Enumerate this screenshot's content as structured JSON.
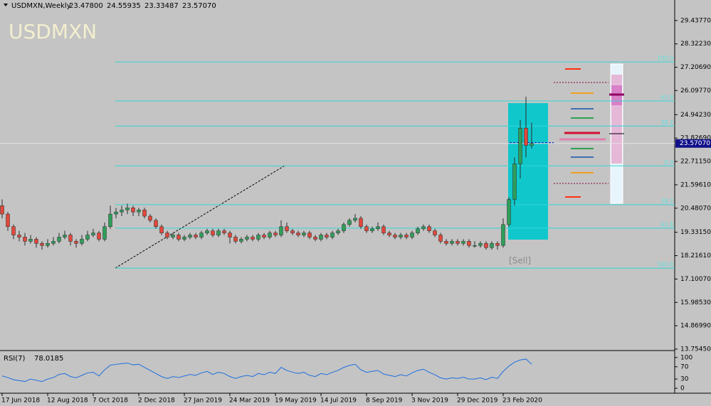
{
  "chart_data": {
    "type": "candlestick",
    "symbol": "USDMXN,Weekly",
    "quote_labels": [
      "23.47800",
      "24.55935",
      "23.33487",
      "23.57070"
    ],
    "watermark": "USDMXN",
    "annotation": "[Sell]",
    "current_price_label": "23.57070",
    "colors": {
      "up": "#2f9e5a",
      "down": "#e2473b",
      "wick": "#2a2a2a",
      "fib": "#33d6d6",
      "rsi": "#1e6fe0"
    },
    "categories": [
      "17 Jun 2018",
      null,
      null,
      null,
      null,
      null,
      null,
      null,
      "12 Aug 2018",
      null,
      null,
      null,
      null,
      null,
      null,
      null,
      "7 Oct 2018",
      null,
      null,
      null,
      null,
      null,
      null,
      null,
      "2 Dec 2018",
      null,
      null,
      null,
      null,
      null,
      null,
      null,
      "27 Jan 2019",
      null,
      null,
      null,
      null,
      null,
      null,
      null,
      "24 Mar 2019",
      null,
      null,
      null,
      null,
      null,
      null,
      null,
      "19 May 2019",
      null,
      null,
      null,
      null,
      null,
      null,
      null,
      "14 Jul 2019",
      null,
      null,
      null,
      null,
      null,
      null,
      null,
      "8 Sep 2019",
      null,
      null,
      null,
      null,
      null,
      null,
      null,
      "3 Nov 2019",
      null,
      null,
      null,
      null,
      null,
      null,
      null,
      "29 Dec 2019",
      null,
      null,
      null,
      null,
      null,
      null,
      null,
      "23 Feb 2020",
      null,
      null,
      null,
      null,
      null
    ],
    "ohlc": [
      [
        20.6,
        20.9,
        20.0,
        20.2
      ],
      [
        20.2,
        20.3,
        19.4,
        19.6
      ],
      [
        19.6,
        19.7,
        19.0,
        19.2
      ],
      [
        19.2,
        19.4,
        18.9,
        19.1
      ],
      [
        19.1,
        19.3,
        18.7,
        18.9
      ],
      [
        18.9,
        19.2,
        18.8,
        19.0
      ],
      [
        19.0,
        19.1,
        18.6,
        18.8
      ],
      [
        18.8,
        18.9,
        18.5,
        18.7
      ],
      [
        18.7,
        19.0,
        18.6,
        18.8
      ],
      [
        18.8,
        19.1,
        18.7,
        18.9
      ],
      [
        18.9,
        19.3,
        18.8,
        19.1
      ],
      [
        19.1,
        19.4,
        19.0,
        19.2
      ],
      [
        19.2,
        19.3,
        18.7,
        18.9
      ],
      [
        18.9,
        19.0,
        18.6,
        18.8
      ],
      [
        18.8,
        19.2,
        18.7,
        19.0
      ],
      [
        19.0,
        19.4,
        18.9,
        19.2
      ],
      [
        19.2,
        19.5,
        19.1,
        19.3
      ],
      [
        19.3,
        19.4,
        18.9,
        19.0
      ],
      [
        19.0,
        19.8,
        18.9,
        19.6
      ],
      [
        19.6,
        20.6,
        19.5,
        20.2
      ],
      [
        20.2,
        20.5,
        20.0,
        20.3
      ],
      [
        20.3,
        20.6,
        20.1,
        20.4
      ],
      [
        20.4,
        20.7,
        20.2,
        20.5
      ],
      [
        20.5,
        20.6,
        20.1,
        20.3
      ],
      [
        20.3,
        20.5,
        20.1,
        20.4
      ],
      [
        20.4,
        20.5,
        20.0,
        20.1
      ],
      [
        20.1,
        20.2,
        19.8,
        19.9
      ],
      [
        19.9,
        20.0,
        19.5,
        19.6
      ],
      [
        19.6,
        19.7,
        19.2,
        19.3
      ],
      [
        19.3,
        19.4,
        19.0,
        19.1
      ],
      [
        19.1,
        19.3,
        19.0,
        19.2
      ],
      [
        19.2,
        19.3,
        18.9,
        19.0
      ],
      [
        19.0,
        19.2,
        18.9,
        19.1
      ],
      [
        19.1,
        19.3,
        19.0,
        19.2
      ],
      [
        19.2,
        19.3,
        19.0,
        19.1
      ],
      [
        19.1,
        19.4,
        19.0,
        19.3
      ],
      [
        19.3,
        19.5,
        19.2,
        19.4
      ],
      [
        19.4,
        19.5,
        19.1,
        19.2
      ],
      [
        19.2,
        19.5,
        19.1,
        19.4
      ],
      [
        19.4,
        19.5,
        19.2,
        19.3
      ],
      [
        19.3,
        19.4,
        18.8,
        19.1
      ],
      [
        19.1,
        19.2,
        18.8,
        18.9
      ],
      [
        18.9,
        19.1,
        18.8,
        19.0
      ],
      [
        19.0,
        19.2,
        18.9,
        19.1
      ],
      [
        19.1,
        19.2,
        18.9,
        19.0
      ],
      [
        19.0,
        19.3,
        18.9,
        19.2
      ],
      [
        19.2,
        19.3,
        19.0,
        19.1
      ],
      [
        19.1,
        19.4,
        19.0,
        19.3
      ],
      [
        19.3,
        19.4,
        19.1,
        19.2
      ],
      [
        19.2,
        19.9,
        19.1,
        19.6
      ],
      [
        19.6,
        19.8,
        19.3,
        19.4
      ],
      [
        19.4,
        19.5,
        19.2,
        19.3
      ],
      [
        19.3,
        19.4,
        19.1,
        19.2
      ],
      [
        19.2,
        19.4,
        19.1,
        19.3
      ],
      [
        19.3,
        19.4,
        19.0,
        19.1
      ],
      [
        19.1,
        19.2,
        18.9,
        19.0
      ],
      [
        19.0,
        19.3,
        18.9,
        19.2
      ],
      [
        19.2,
        19.3,
        19.0,
        19.1
      ],
      [
        19.1,
        19.4,
        19.0,
        19.3
      ],
      [
        19.3,
        19.5,
        19.2,
        19.4
      ],
      [
        19.4,
        19.8,
        19.3,
        19.7
      ],
      [
        19.7,
        20.0,
        19.6,
        19.9
      ],
      [
        19.9,
        20.2,
        19.8,
        20.0
      ],
      [
        20.0,
        20.1,
        19.5,
        19.6
      ],
      [
        19.6,
        19.7,
        19.3,
        19.4
      ],
      [
        19.4,
        19.6,
        19.3,
        19.5
      ],
      [
        19.5,
        19.8,
        19.4,
        19.6
      ],
      [
        19.6,
        19.7,
        19.2,
        19.3
      ],
      [
        19.3,
        19.4,
        19.1,
        19.2
      ],
      [
        19.2,
        19.3,
        19.0,
        19.1
      ],
      [
        19.1,
        19.3,
        19.0,
        19.2
      ],
      [
        19.2,
        19.3,
        19.0,
        19.1
      ],
      [
        19.1,
        19.4,
        19.0,
        19.3
      ],
      [
        19.3,
        19.6,
        19.2,
        19.5
      ],
      [
        19.5,
        19.7,
        19.4,
        19.6
      ],
      [
        19.6,
        19.7,
        19.3,
        19.4
      ],
      [
        19.4,
        19.5,
        19.1,
        19.2
      ],
      [
        19.2,
        19.3,
        18.8,
        18.9
      ],
      [
        18.9,
        19.0,
        18.7,
        18.8
      ],
      [
        18.8,
        19.0,
        18.7,
        18.9
      ],
      [
        18.9,
        19.0,
        18.7,
        18.8
      ],
      [
        18.8,
        19.0,
        18.7,
        18.9
      ],
      [
        18.9,
        19.0,
        18.6,
        18.7
      ],
      [
        18.7,
        18.9,
        18.6,
        18.7
      ],
      [
        18.7,
        18.9,
        18.6,
        18.8
      ],
      [
        18.8,
        18.9,
        18.5,
        18.6
      ],
      [
        18.6,
        18.9,
        18.5,
        18.8
      ],
      [
        18.8,
        18.9,
        18.5,
        18.7
      ],
      [
        18.7,
        20.0,
        18.6,
        19.7
      ],
      [
        19.7,
        21.0,
        19.6,
        20.9
      ],
      [
        20.9,
        22.9,
        20.6,
        22.6
      ],
      [
        22.6,
        24.7,
        21.9,
        24.3
      ],
      [
        24.3,
        25.8,
        22.9,
        23.478
      ],
      [
        23.478,
        24.55935,
        23.33487,
        23.5707
      ]
    ],
    "ylim": [
      13.687,
      30.417
    ],
    "yticks": [
      {
        "value": 29.4377,
        "label": "29.43770"
      },
      {
        "value": 28.3223,
        "label": "28.32230"
      },
      {
        "value": 27.2069,
        "label": "27.20690"
      },
      {
        "value": 26.0977,
        "label": "26.09770"
      },
      {
        "value": 24.9423,
        "label": "24.94230"
      },
      {
        "value": 23.8269,
        "label": "23.82690"
      },
      {
        "value": 22.7115,
        "label": "22.71150"
      },
      {
        "value": 21.5961,
        "label": "21.59610"
      },
      {
        "value": 20.4807,
        "label": "20.48070"
      },
      {
        "value": 19.3315,
        "label": "19.33150"
      },
      {
        "value": 18.2161,
        "label": "18.21610"
      },
      {
        "value": 17.1007,
        "label": "17.10070"
      },
      {
        "value": 15.9853,
        "label": "15.98530"
      },
      {
        "value": 14.8699,
        "label": "14.86990"
      },
      {
        "value": 13.7545,
        "label": "13.75450"
      }
    ],
    "fib_levels": [
      {
        "value": 27.46,
        "label": "100.0"
      },
      {
        "value": 25.6,
        "label": "61.8"
      },
      {
        "value": 24.4,
        "label": "38.2"
      },
      {
        "value": 22.5,
        "label": "0.0"
      },
      {
        "value": 20.65,
        "label": "38.2"
      },
      {
        "value": 19.53,
        "label": "61.8"
      },
      {
        "value": 17.62,
        "label": "100.0"
      }
    ],
    "rsi": {
      "label": "RSI(7)",
      "values": [
        40,
        35,
        28,
        25,
        22,
        30,
        26,
        22,
        30,
        35,
        45,
        48,
        38,
        34,
        42,
        50,
        52,
        40,
        60,
        75,
        78,
        80,
        82,
        76,
        78,
        68,
        58,
        48,
        38,
        32,
        38,
        35,
        40,
        45,
        42,
        50,
        55,
        45,
        52,
        48,
        38,
        32,
        38,
        42,
        38,
        48,
        44,
        52,
        48,
        68,
        58,
        52,
        48,
        52,
        42,
        38,
        48,
        44,
        52,
        58,
        68,
        74,
        78,
        60,
        52,
        55,
        58,
        46,
        42,
        38,
        44,
        40,
        50,
        58,
        62,
        52,
        44,
        34,
        30,
        34,
        32,
        36,
        30,
        30,
        34,
        28,
        36,
        32,
        55,
        72,
        85,
        92,
        95,
        78.0185
      ],
      "ylim": [
        -16,
        118
      ],
      "yticks": [
        100,
        70,
        30,
        0
      ]
    }
  }
}
